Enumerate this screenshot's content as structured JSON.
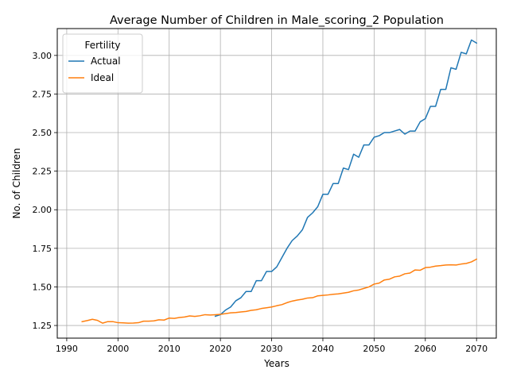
{
  "chart_data": {
    "type": "line",
    "title": "Average Number of Children in Male_scoring_2 Population",
    "xlabel": "Years",
    "ylabel": "No. of Children",
    "xlim": [
      1988.15,
      2073.85
    ],
    "ylim": [
      1.168,
      3.174
    ],
    "xticks": [
      1990,
      2000,
      2010,
      2020,
      2030,
      2040,
      2050,
      2060,
      2070
    ],
    "xtick_labels": [
      "1990",
      "2000",
      "2010",
      "2020",
      "2030",
      "2040",
      "2050",
      "2060",
      "2070"
    ],
    "yticks": [
      1.25,
      1.5,
      1.75,
      2.0,
      2.25,
      2.5,
      2.75,
      3.0
    ],
    "ytick_labels": [
      "1.25",
      "1.50",
      "1.75",
      "2.00",
      "2.25",
      "2.50",
      "2.75",
      "3.00"
    ],
    "grid": true,
    "legend": {
      "title": "Fertility",
      "position": "top-left"
    },
    "series": [
      {
        "name": "Actual",
        "color": "#1f77b4",
        "x": [
          2019,
          2020,
          2021,
          2022,
          2023,
          2024,
          2025,
          2026,
          2027,
          2028,
          2029,
          2030,
          2031,
          2032,
          2033,
          2034,
          2035,
          2036,
          2037,
          2038,
          2039,
          2040,
          2041,
          2042,
          2043,
          2044,
          2045,
          2046,
          2047,
          2048,
          2049,
          2050,
          2051,
          2052,
          2053,
          2054,
          2055,
          2056,
          2057,
          2058,
          2059,
          2060,
          2061,
          2062,
          2063,
          2064,
          2065,
          2066,
          2067,
          2068,
          2069,
          2070
        ],
        "y": [
          1.31,
          1.32,
          1.35,
          1.37,
          1.41,
          1.43,
          1.47,
          1.47,
          1.54,
          1.54,
          1.6,
          1.6,
          1.63,
          1.69,
          1.75,
          1.8,
          1.83,
          1.87,
          1.95,
          1.98,
          2.02,
          2.1,
          2.1,
          2.17,
          2.17,
          2.27,
          2.26,
          2.36,
          2.34,
          2.42,
          2.42,
          2.47,
          2.48,
          2.5,
          2.5,
          2.51,
          2.52,
          2.49,
          2.51,
          2.51,
          2.57,
          2.59,
          2.67,
          2.67,
          2.78,
          2.78,
          2.92,
          2.91,
          3.02,
          3.01,
          3.1,
          3.08
        ]
      },
      {
        "name": "Ideal",
        "color": "#ff7f0e",
        "x": [
          1993,
          1994,
          1995,
          1996,
          1997,
          1998,
          1999,
          2000,
          2001,
          2002,
          2003,
          2004,
          2005,
          2006,
          2007,
          2008,
          2009,
          2010,
          2011,
          2012,
          2013,
          2014,
          2015,
          2016,
          2017,
          2018,
          2019,
          2020,
          2021,
          2022,
          2023,
          2024,
          2025,
          2026,
          2027,
          2028,
          2029,
          2030,
          2031,
          2032,
          2033,
          2034,
          2035,
          2036,
          2037,
          2038,
          2039,
          2040,
          2041,
          2042,
          2043,
          2044,
          2045,
          2046,
          2047,
          2048,
          2049,
          2050,
          2051,
          2052,
          2053,
          2054,
          2055,
          2056,
          2057,
          2058,
          2059,
          2060,
          2061,
          2062,
          2063,
          2064,
          2065,
          2066,
          2067,
          2068,
          2069,
          2070
        ],
        "y": [
          1.275,
          1.282,
          1.29,
          1.283,
          1.265,
          1.275,
          1.275,
          1.268,
          1.267,
          1.265,
          1.266,
          1.268,
          1.278,
          1.278,
          1.28,
          1.287,
          1.285,
          1.298,
          1.296,
          1.302,
          1.305,
          1.312,
          1.309,
          1.313,
          1.32,
          1.318,
          1.32,
          1.322,
          1.327,
          1.332,
          1.334,
          1.338,
          1.341,
          1.348,
          1.352,
          1.36,
          1.365,
          1.37,
          1.378,
          1.385,
          1.398,
          1.408,
          1.415,
          1.42,
          1.428,
          1.43,
          1.442,
          1.445,
          1.448,
          1.452,
          1.455,
          1.46,
          1.465,
          1.475,
          1.48,
          1.49,
          1.5,
          1.518,
          1.525,
          1.545,
          1.55,
          1.565,
          1.57,
          1.585,
          1.59,
          1.61,
          1.608,
          1.625,
          1.628,
          1.635,
          1.638,
          1.642,
          1.643,
          1.642,
          1.648,
          1.652,
          1.662,
          1.68
        ]
      }
    ]
  }
}
